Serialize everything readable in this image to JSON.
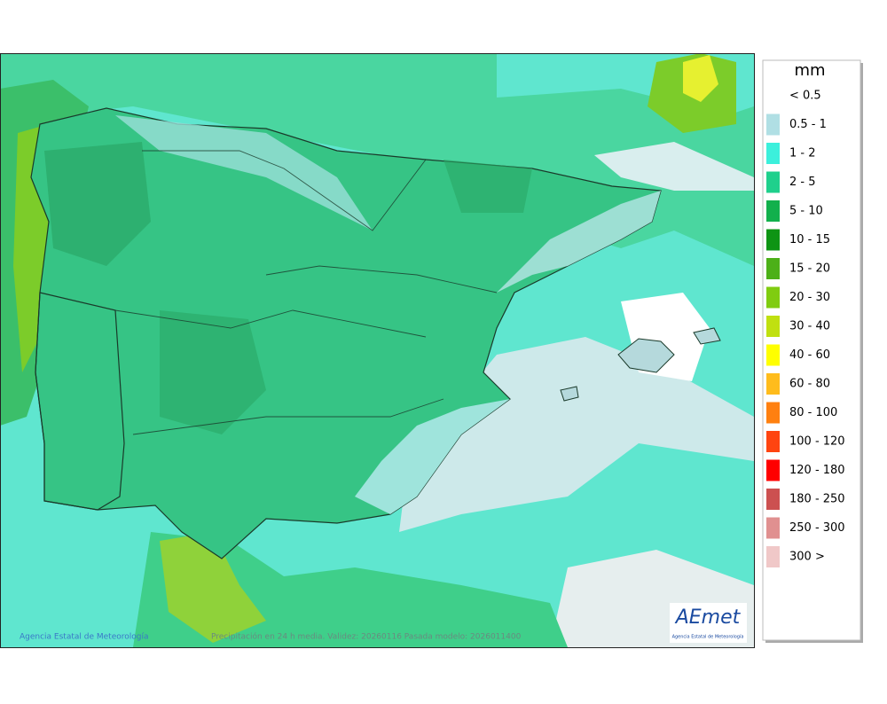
{
  "legend": {
    "title": "mm",
    "items": [
      {
        "label": "< 0.5",
        "color": "#ffffff"
      },
      {
        "label": "0.5 - 1",
        "color": "#b0dfe4"
      },
      {
        "label": "1 - 2",
        "color": "#3cf0dc"
      },
      {
        "label": "2 - 5",
        "color": "#1fd08c"
      },
      {
        "label": "5 - 10",
        "color": "#12b04c"
      },
      {
        "label": "10 - 15",
        "color": "#0e9414"
      },
      {
        "label": "15 - 20",
        "color": "#4cb018"
      },
      {
        "label": "20 - 30",
        "color": "#80cc10"
      },
      {
        "label": "30 - 40",
        "color": "#c0e010"
      },
      {
        "label": "40 - 60",
        "color": "#ffff00"
      },
      {
        "label": "60 - 80",
        "color": "#ffbc1c"
      },
      {
        "label": "80 - 100",
        "color": "#ff8010"
      },
      {
        "label": "100 - 120",
        "color": "#ff4410"
      },
      {
        "label": "120 - 180",
        "color": "#ff0000"
      },
      {
        "label": "180 - 250",
        "color": "#cc5050"
      },
      {
        "label": "250 - 300",
        "color": "#e09090"
      },
      {
        "label": "300 >",
        "color": "#f0c8c8"
      }
    ]
  },
  "footer": {
    "credit": "Agencia Estatal de Meteorología",
    "caption": "Precipitación en 24 h media. Validez: 20260116 Pasada modelo: 2026011400"
  },
  "logo": {
    "name": "AEmet",
    "subtitle": "Agencia Estatal de Meteorología"
  }
}
